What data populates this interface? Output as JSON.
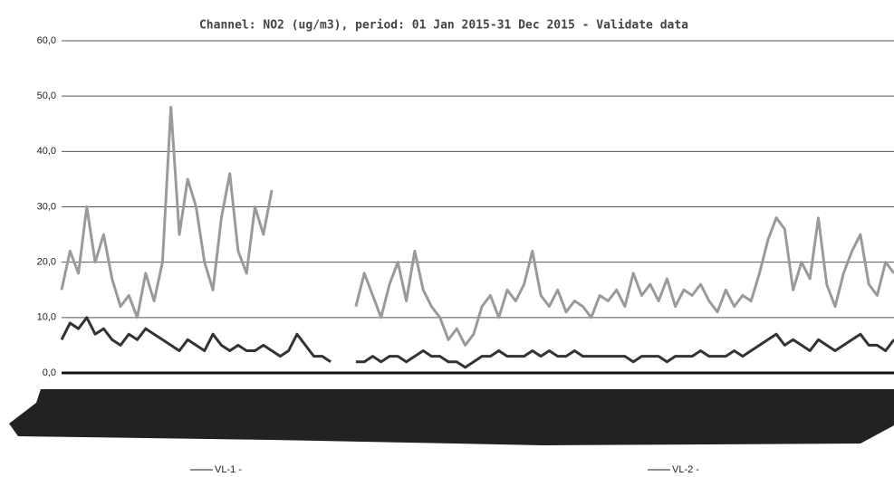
{
  "chart_data": {
    "type": "line",
    "title": "Channel: NO2 (ug/m3), period: 01 Jan 2015-31 Dec 2015 - Validate data",
    "categories": [
      null,
      null,
      null,
      null,
      null,
      null,
      null,
      null,
      null,
      null,
      null,
      null,
      null,
      null,
      null,
      null,
      null,
      null,
      null,
      null,
      null,
      null,
      null,
      null,
      null,
      null,
      null,
      null,
      null,
      null,
      null,
      null,
      null,
      null,
      null,
      null,
      null,
      null,
      null,
      null,
      null,
      null,
      null,
      null,
      null,
      null,
      null,
      null,
      null,
      null,
      null,
      null,
      null,
      null,
      null,
      null,
      null,
      null,
      null,
      null,
      null,
      null,
      null,
      null,
      null,
      null,
      null,
      null,
      null,
      null,
      null,
      null,
      null,
      null,
      null,
      null,
      null,
      null,
      null,
      null,
      null,
      null,
      null,
      null,
      null,
      null,
      null,
      null,
      null,
      null,
      null,
      null,
      null,
      null,
      null,
      null,
      null,
      null,
      null,
      null
    ],
    "series": [
      {
        "name": "VL-1 -",
        "color": "#9a9a9a",
        "values": [
          15,
          22,
          18,
          30,
          20,
          25,
          17,
          12,
          14,
          10,
          18,
          13,
          20,
          48,
          25,
          35,
          30,
          20,
          15,
          28,
          36,
          22,
          18,
          30,
          25,
          33,
          null,
          null,
          null,
          null,
          null,
          null,
          null,
          null,
          null,
          12,
          18,
          14,
          10,
          16,
          20,
          13,
          22,
          15,
          12,
          10,
          6,
          8,
          5,
          7,
          12,
          14,
          10,
          15,
          13,
          16,
          22,
          14,
          12,
          15,
          11,
          13,
          12,
          10,
          14,
          13,
          15,
          12,
          18,
          14,
          16,
          13,
          17,
          12,
          15,
          14,
          16,
          13,
          11,
          15,
          12,
          14,
          13,
          18,
          24,
          28,
          26,
          15,
          20,
          17,
          28,
          16,
          12,
          18,
          22,
          25,
          16,
          14,
          20,
          18
        ]
      },
      {
        "name": "VL-2 -",
        "color": "#333333",
        "values": [
          6,
          9,
          8,
          10,
          7,
          8,
          6,
          5,
          7,
          6,
          8,
          7,
          6,
          5,
          4,
          6,
          5,
          4,
          7,
          5,
          4,
          5,
          4,
          4,
          5,
          4,
          3,
          4,
          7,
          5,
          3,
          3,
          2,
          null,
          null,
          2,
          2,
          3,
          2,
          3,
          3,
          2,
          3,
          4,
          3,
          3,
          2,
          2,
          1,
          2,
          3,
          3,
          4,
          3,
          3,
          3,
          4,
          3,
          4,
          3,
          3,
          4,
          3,
          3,
          3,
          3,
          3,
          3,
          2,
          3,
          3,
          3,
          2,
          3,
          3,
          3,
          4,
          3,
          3,
          3,
          4,
          3,
          4,
          5,
          6,
          7,
          5,
          6,
          5,
          4,
          6,
          5,
          4,
          5,
          6,
          7,
          5,
          5,
          4,
          6
        ]
      }
    ],
    "ylim": [
      0,
      60
    ],
    "yticks": [
      {
        "value": 0,
        "label": "0,0"
      },
      {
        "value": 10,
        "label": "10,0"
      },
      {
        "value": 20,
        "label": "20,0"
      },
      {
        "value": 30,
        "label": "30,0"
      },
      {
        "value": 40,
        "label": "40,0"
      },
      {
        "value": 50,
        "label": "50,0"
      },
      {
        "value": 60,
        "label": "60,0"
      }
    ],
    "grid": true
  }
}
